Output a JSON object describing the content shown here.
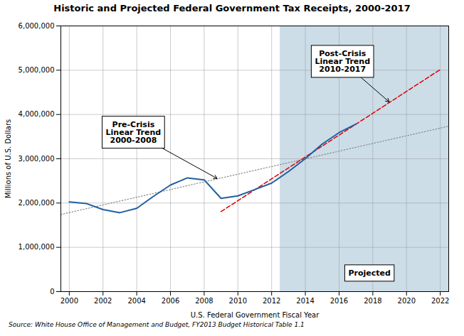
{
  "chart_data": {
    "type": "line",
    "title": "Historic and Projected Federal Government Tax Receipts, 2000-2017",
    "xlabel": "U.S. Federal Government Fiscal Year",
    "ylabel": "Millions of U.S. Dollars",
    "caption": "Source: White House Office of Management and Budget, FY2013 Budget Historical Table 1.1",
    "xlim": [
      1999.5,
      2022.5
    ],
    "ylim": [
      0,
      6000000
    ],
    "xticks": [
      2000,
      2002,
      2004,
      2006,
      2008,
      2010,
      2012,
      2014,
      2016,
      2018,
      2020,
      2022
    ],
    "yticks": [
      0,
      {
        "value": 1000000,
        "label": "1,000,000"
      },
      {
        "value": 2000000,
        "label": "2,000,000"
      },
      {
        "value": 3000000,
        "label": "3,000,000"
      },
      {
        "value": 4000000,
        "label": "4,000,000"
      },
      {
        "value": 5000000,
        "label": "5,000,000"
      },
      {
        "value": 6000000,
        "label": "6,000,000"
      }
    ],
    "grid": true,
    "shaded_region": {
      "x": [
        2012.5,
        2023
      ],
      "color": "#ccdde8"
    },
    "series": [
      {
        "x": [
          2000,
          2001,
          2002,
          2003,
          2004,
          2005,
          2006,
          2007,
          2008,
          2009,
          2010,
          2011,
          2012,
          2013,
          2014,
          2015,
          2016,
          2017
        ],
        "values": [
          2025218,
          1991082,
          1853136,
          1782314,
          1880114,
          2153611,
          2406869,
          2567985,
          2523991,
          2104989,
          2162724,
          2303466,
          2450164,
          2712000,
          3003000,
          3333000,
          3590000,
          3785000
        ],
        "color": "#2060a0",
        "line_style": "solid"
      },
      {
        "x": [
          1999.5,
          2022.5
        ],
        "values": [
          1741248.811,
          3736331.678
        ],
        "color": "#888888",
        "line_style": "dotted"
      },
      {
        "x": [
          2009,
          2022
        ],
        "values": [
          1806984.786,
          5014906.571
        ],
        "color": "#dd0000",
        "line_style": "dashed"
      }
    ],
    "annotations": [
      {
        "text": "Pre-Crisis\nLinear Trend\n2000-2008",
        "x": 2003.8,
        "y": 3600000,
        "arrow_to": [
          2008.8,
          2547956.23
        ]
      },
      {
        "text": "Post-Crisis\nLinear Trend\n2010-2017",
        "x": 2016.2,
        "y": 5200000,
        "arrow_to": [
          2019.0,
          4274616.929
        ]
      },
      {
        "text": "Projected",
        "x": 2017.8,
        "y": 420000
      }
    ]
  }
}
